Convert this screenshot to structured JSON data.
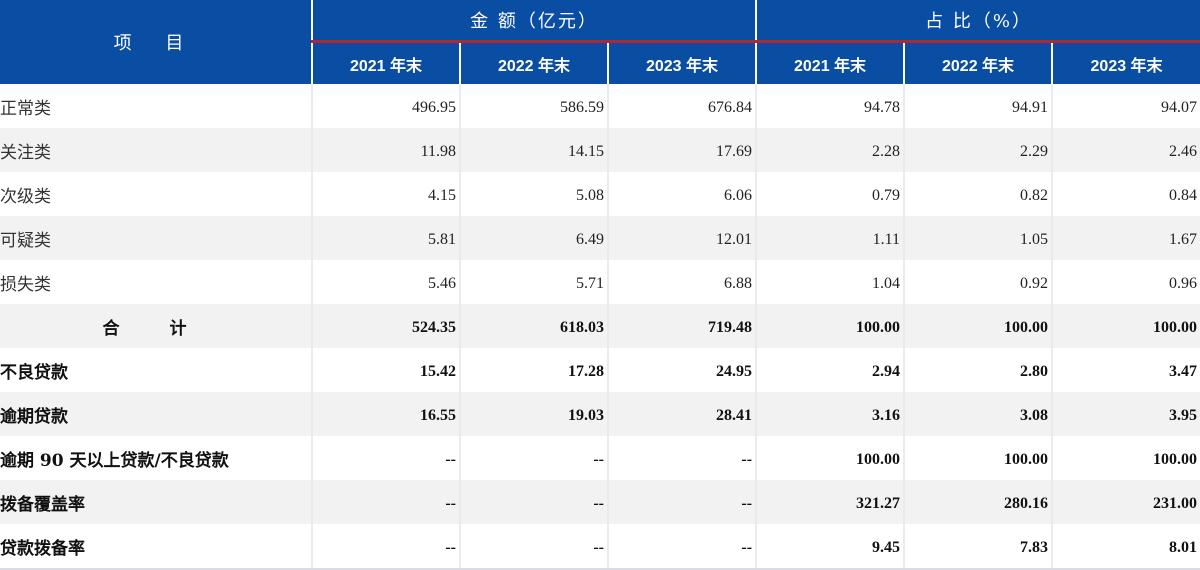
{
  "header": {
    "row_label": "项 目",
    "amount_group": "金 额（亿元）",
    "ratio_group": "占 比（%）",
    "years": [
      "2021 年末",
      "2022 年末",
      "2023 年末"
    ]
  },
  "rows": [
    {
      "label": "正常类",
      "amount": [
        "496.95",
        "586.59",
        "676.84"
      ],
      "ratio": [
        "94.78",
        "94.91",
        "94.07"
      ]
    },
    {
      "label": "关注类",
      "amount": [
        "11.98",
        "14.15",
        "17.69"
      ],
      "ratio": [
        "2.28",
        "2.29",
        "2.46"
      ]
    },
    {
      "label": "次级类",
      "amount": [
        "4.15",
        "5.08",
        "6.06"
      ],
      "ratio": [
        "0.79",
        "0.82",
        "0.84"
      ]
    },
    {
      "label": "可疑类",
      "amount": [
        "5.81",
        "6.49",
        "12.01"
      ],
      "ratio": [
        "1.11",
        "1.05",
        "1.67"
      ]
    },
    {
      "label": "损失类",
      "amount": [
        "5.46",
        "5.71",
        "6.88"
      ],
      "ratio": [
        "1.04",
        "0.92",
        "0.96"
      ]
    },
    {
      "label": "合 计",
      "amount": [
        "524.35",
        "618.03",
        "719.48"
      ],
      "ratio": [
        "100.00",
        "100.00",
        "100.00"
      ]
    },
    {
      "label": "不良贷款",
      "amount": [
        "15.42",
        "17.28",
        "24.95"
      ],
      "ratio": [
        "2.94",
        "2.80",
        "3.47"
      ]
    },
    {
      "label": "逾期贷款",
      "amount": [
        "16.55",
        "19.03",
        "28.41"
      ],
      "ratio": [
        "3.16",
        "3.08",
        "3.95"
      ]
    },
    {
      "label": "逾期 90 天以上贷款/不良贷款",
      "amount": [
        "--",
        "--",
        "--"
      ],
      "ratio": [
        "100.00",
        "100.00",
        "100.00"
      ]
    },
    {
      "label": "拨备覆盖率",
      "amount": [
        "--",
        "--",
        "--"
      ],
      "ratio": [
        "321.27",
        "280.16",
        "231.00"
      ]
    },
    {
      "label": "贷款拨备率",
      "amount": [
        "--",
        "--",
        "--"
      ],
      "ratio": [
        "9.45",
        "7.83",
        "8.01"
      ]
    }
  ],
  "colors": {
    "header_bg": "#0a4ea3",
    "header_rule": "#b2243a",
    "row_shade": "#f2f2f2"
  }
}
